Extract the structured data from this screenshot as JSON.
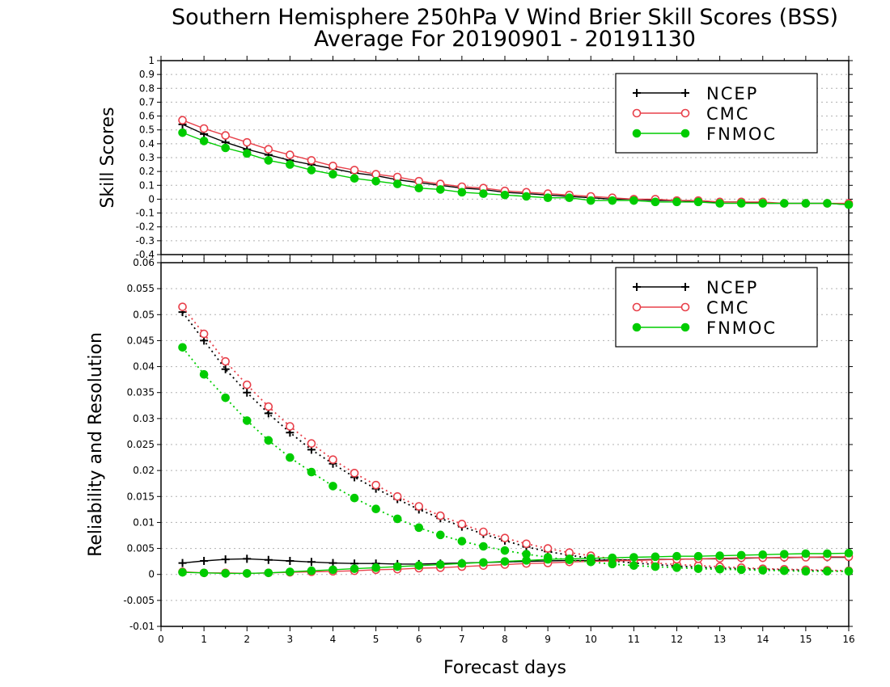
{
  "titles": {
    "line1": "Southern Hemisphere 250hPa V Wind Brier Skill Scores (BSS)",
    "line2": "Average For 20190901 - 20191130"
  },
  "colors": {
    "NCEP": "#000000",
    "CMC": "#e8404a",
    "FNMOC": "#00cc00"
  },
  "chart_data": [
    {
      "type": "line",
      "ylabel": "Skill Scores",
      "xlabel": "",
      "xlim": [
        0,
        16
      ],
      "ylim": [
        -0.4,
        1
      ],
      "xticks": [
        "0",
        "1",
        "2",
        "3",
        "4",
        "5",
        "6",
        "7",
        "8",
        "9",
        "10",
        "11",
        "12",
        "13",
        "14",
        "15",
        "16"
      ],
      "yticks": [
        "1",
        "0.9",
        "0.8",
        "0.7",
        "0.6",
        "0.5",
        "0.4",
        "0.3",
        "0.2",
        "0.1",
        "0",
        "-0.1",
        "-0.2",
        "-0.3",
        "-0.4"
      ],
      "legend": [
        "NCEP",
        "CMC",
        "FNMOC"
      ],
      "legend_position": "top-right",
      "grid": true,
      "x": [
        0.5,
        1,
        1.5,
        2,
        2.5,
        3,
        3.5,
        4,
        4.5,
        5,
        5.5,
        6,
        6.5,
        7,
        7.5,
        8,
        8.5,
        9,
        9.5,
        10,
        10.5,
        11,
        11.5,
        12,
        12.5,
        13,
        13.5,
        14,
        14.5,
        15,
        15.5,
        16
      ],
      "series": [
        {
          "name": "NCEP",
          "marker": "plus",
          "values": [
            0.54,
            0.47,
            0.41,
            0.36,
            0.32,
            0.28,
            0.25,
            0.22,
            0.19,
            0.17,
            0.14,
            0.12,
            0.1,
            0.08,
            0.07,
            0.05,
            0.04,
            0.03,
            0.02,
            0.01,
            0.0,
            0.0,
            -0.01,
            -0.01,
            -0.02,
            -0.02,
            -0.02,
            -0.03,
            -0.03,
            -0.03,
            -0.03,
            -0.04
          ]
        },
        {
          "name": "CMC",
          "marker": "open-circle",
          "values": [
            0.57,
            0.51,
            0.46,
            0.41,
            0.36,
            0.32,
            0.28,
            0.24,
            0.21,
            0.18,
            0.16,
            0.13,
            0.11,
            0.09,
            0.08,
            0.06,
            0.05,
            0.04,
            0.03,
            0.02,
            0.01,
            0.0,
            0.0,
            -0.01,
            -0.01,
            -0.02,
            -0.02,
            -0.02,
            -0.03,
            -0.03,
            -0.03,
            -0.03
          ]
        },
        {
          "name": "FNMOC",
          "marker": "filled-circle",
          "values": [
            0.48,
            0.42,
            0.37,
            0.33,
            0.28,
            0.25,
            0.21,
            0.18,
            0.15,
            0.13,
            0.11,
            0.08,
            0.07,
            0.05,
            0.04,
            0.03,
            0.02,
            0.01,
            0.01,
            -0.01,
            -0.01,
            -0.01,
            -0.02,
            -0.02,
            -0.02,
            -0.03,
            -0.03,
            -0.03,
            -0.03,
            -0.03,
            -0.03,
            -0.04
          ]
        }
      ]
    },
    {
      "type": "line",
      "ylabel": "Reliability and Resolution",
      "xlabel": "Forecast days",
      "xlim": [
        0,
        16
      ],
      "ylim": [
        -0.01,
        0.06
      ],
      "xticks": [
        "0",
        "1",
        "2",
        "3",
        "4",
        "5",
        "6",
        "7",
        "8",
        "9",
        "10",
        "11",
        "12",
        "13",
        "14",
        "15",
        "16"
      ],
      "yticks": [
        "0.06",
        "0.055",
        "0.05",
        "0.045",
        "0.04",
        "0.035",
        "0.03",
        "0.025",
        "0.02",
        "0.015",
        "0.01",
        "0.005",
        "0",
        "-0.005",
        "-0.01"
      ],
      "legend": [
        "NCEP",
        "CMC",
        "FNMOC"
      ],
      "legend_position": "top-right",
      "grid": true,
      "x": [
        0.5,
        1,
        1.5,
        2,
        2.5,
        3,
        3.5,
        4,
        4.5,
        5,
        5.5,
        6,
        6.5,
        7,
        7.5,
        8,
        8.5,
        9,
        9.5,
        10,
        10.5,
        11,
        11.5,
        12,
        12.5,
        13,
        13.5,
        14,
        14.5,
        15,
        15.5,
        16
      ],
      "series": [
        {
          "name": "NCEP",
          "marker": "plus",
          "component": "resolution",
          "values": [
            0.0505,
            0.045,
            0.0395,
            0.035,
            0.031,
            0.0273,
            0.024,
            0.0213,
            0.0187,
            0.0165,
            0.0145,
            0.0125,
            0.0108,
            0.0092,
            0.0078,
            0.0065,
            0.0053,
            0.0044,
            0.0037,
            0.0031,
            0.0026,
            0.0022,
            0.0019,
            0.0016,
            0.0014,
            0.0012,
            0.0011,
            0.001,
            0.0009,
            0.0008,
            0.0007,
            0.0006
          ]
        },
        {
          "name": "NCEP",
          "marker": "plus",
          "component": "reliability",
          "values": [
            0.0022,
            0.0026,
            0.0029,
            0.003,
            0.0028,
            0.0026,
            0.0024,
            0.0022,
            0.0021,
            0.0021,
            0.002,
            0.002,
            0.0021,
            0.0022,
            0.0023,
            0.0024,
            0.0025,
            0.0026,
            0.0027,
            0.0027,
            0.0028,
            0.0028,
            0.0029,
            0.0029,
            0.003,
            0.003,
            0.0031,
            0.0032,
            0.0032,
            0.0033,
            0.0033,
            0.0033
          ]
        },
        {
          "name": "CMC",
          "marker": "open-circle",
          "component": "resolution",
          "values": [
            0.0515,
            0.0463,
            0.041,
            0.0365,
            0.0323,
            0.0285,
            0.0252,
            0.0221,
            0.0195,
            0.0172,
            0.015,
            0.0131,
            0.0113,
            0.0097,
            0.0082,
            0.007,
            0.0059,
            0.005,
            0.0042,
            0.0036,
            0.003,
            0.0026,
            0.0022,
            0.0019,
            0.0017,
            0.0015,
            0.0013,
            0.0011,
            0.001,
            0.0009,
            0.0008,
            0.0007
          ]
        },
        {
          "name": "CMC",
          "marker": "open-circle",
          "component": "reliability",
          "values": [
            0.0005,
            0.0003,
            0.0003,
            0.0002,
            0.0003,
            0.0004,
            0.0005,
            0.0006,
            0.0007,
            0.0009,
            0.001,
            0.0012,
            0.0013,
            0.0015,
            0.0017,
            0.0019,
            0.0021,
            0.0022,
            0.0024,
            0.0025,
            0.0026,
            0.0027,
            0.0028,
            0.0029,
            0.003,
            0.0031,
            0.0032,
            0.0032,
            0.0033,
            0.0033,
            0.0034,
            0.0034
          ]
        },
        {
          "name": "FNMOC",
          "marker": "filled-circle",
          "component": "resolution",
          "values": [
            0.0437,
            0.0385,
            0.034,
            0.0296,
            0.0258,
            0.0225,
            0.0197,
            0.017,
            0.0147,
            0.0126,
            0.0107,
            0.009,
            0.0076,
            0.0064,
            0.0054,
            0.0046,
            0.0039,
            0.0033,
            0.0028,
            0.0024,
            0.002,
            0.0017,
            0.0015,
            0.0013,
            0.0011,
            0.001,
            0.0009,
            0.0008,
            0.0007,
            0.0006,
            0.0006,
            0.0006
          ]
        },
        {
          "name": "FNMOC",
          "marker": "filled-circle",
          "component": "reliability",
          "values": [
            0.0004,
            0.0003,
            0.0002,
            0.0002,
            0.0003,
            0.0005,
            0.0007,
            0.0009,
            0.0011,
            0.0013,
            0.0015,
            0.0017,
            0.0019,
            0.0021,
            0.0023,
            0.0025,
            0.0027,
            0.0029,
            0.003,
            0.0031,
            0.0032,
            0.0033,
            0.0034,
            0.0035,
            0.0035,
            0.0036,
            0.0037,
            0.0038,
            0.0039,
            0.004,
            0.004,
            0.0041
          ]
        }
      ]
    }
  ]
}
